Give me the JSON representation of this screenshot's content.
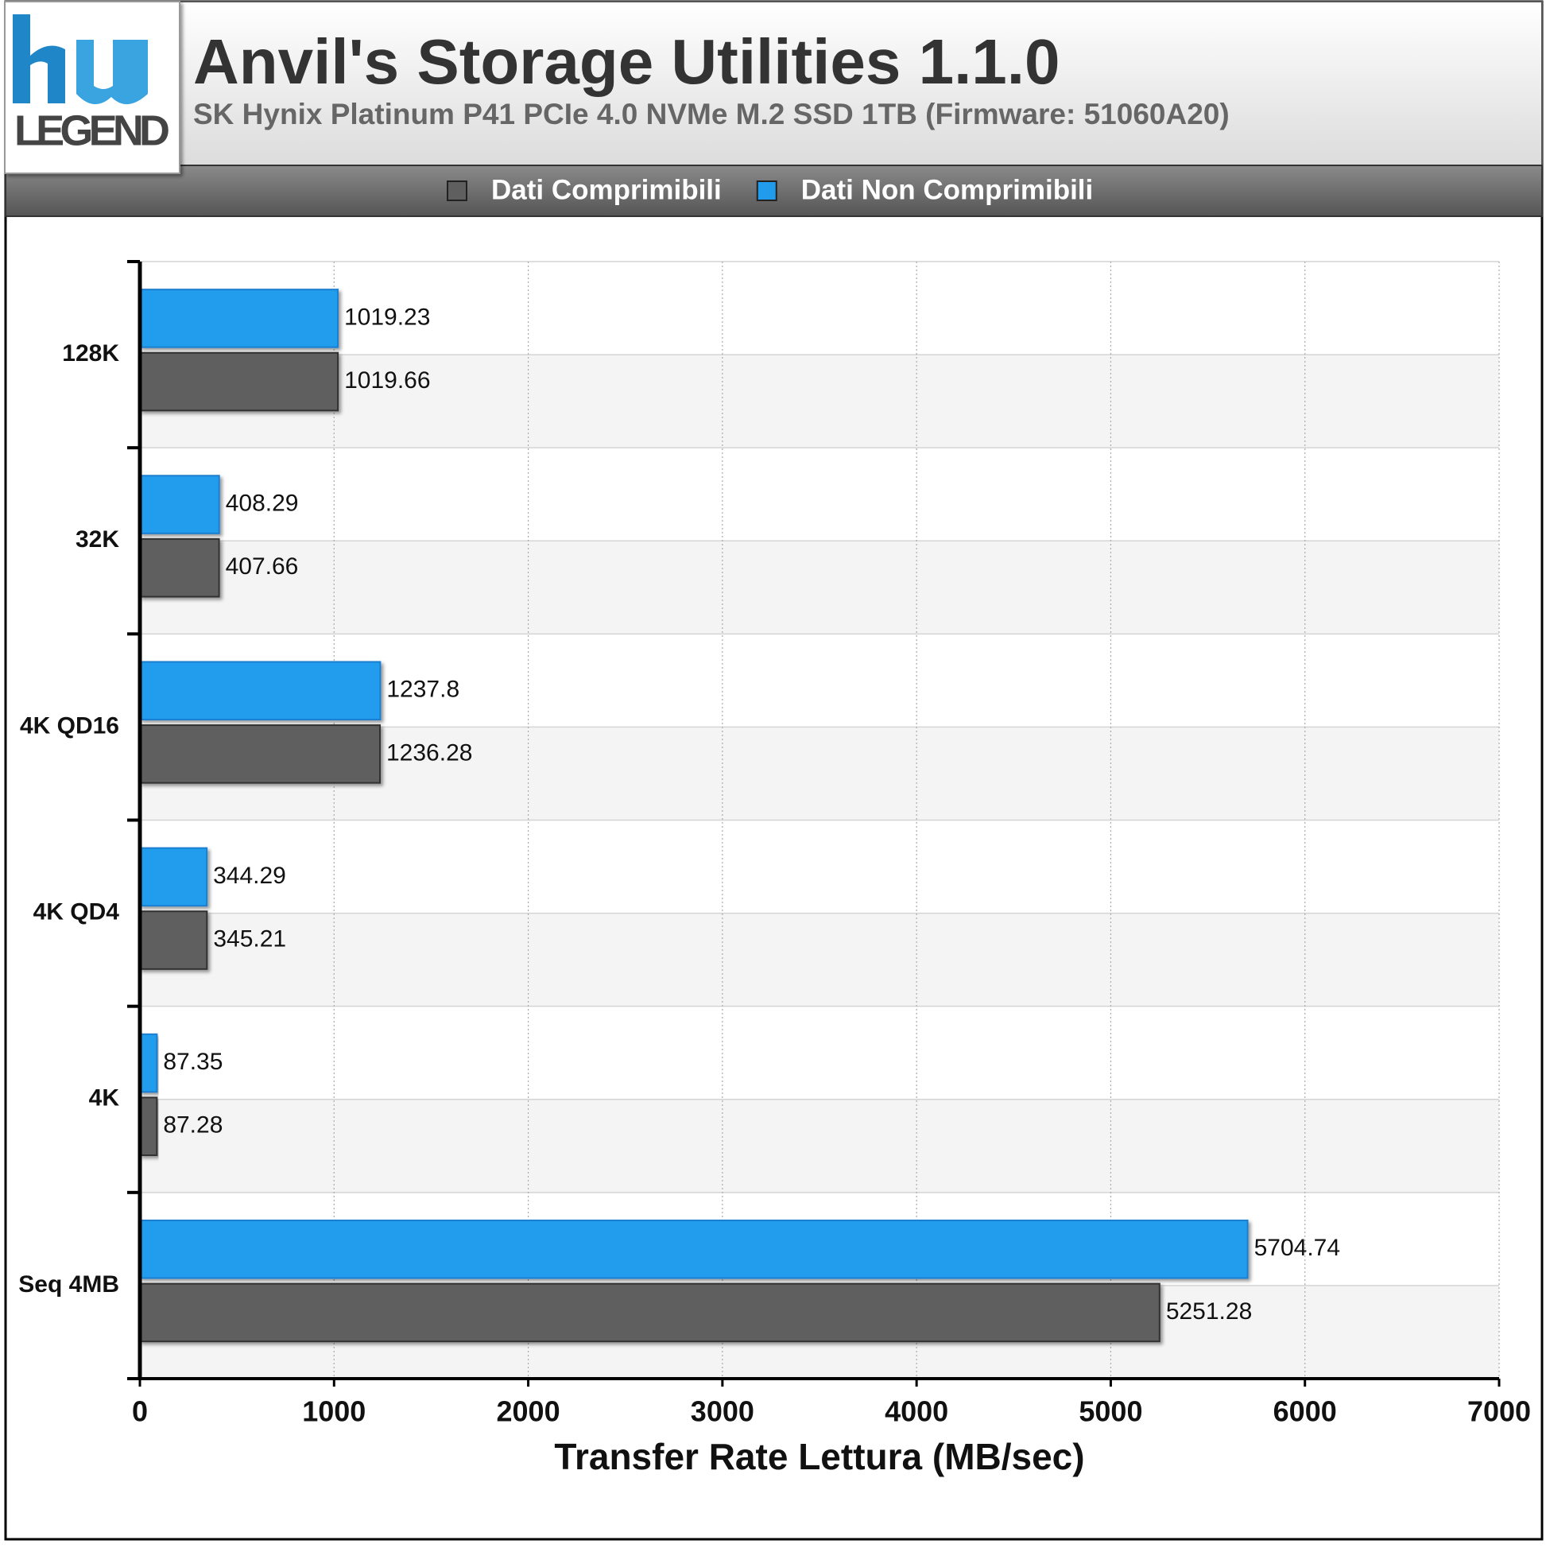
{
  "logo": {
    "text": "LEGEND"
  },
  "chart_data": {
    "type": "hbar",
    "title": "Anvil's Storage Utilities 1.1.0",
    "subtitle": "SK Hynix Platinum P41 PCIe 4.0 NVMe M.2 SSD 1TB (Firmware: 51060A20)",
    "x_label": "Transfer Rate Lettura (MB/sec)",
    "categories": [
      "128K",
      "32K",
      "4K QD16",
      "4K QD4",
      "4K",
      "Seq 4MB"
    ],
    "series": [
      {
        "name": "Dati Comprimibili",
        "color": "#5f5f5f",
        "values": [
          1019.66,
          407.66,
          1236.28,
          345.21,
          87.28,
          5251.28
        ]
      },
      {
        "name": "Dati Non Comprimibili",
        "color": "#219ced",
        "values": [
          1019.23,
          408.29,
          1237.8,
          344.29,
          87.35,
          5704.74
        ]
      }
    ],
    "xlim": [
      0,
      7000
    ],
    "xticks": [
      0,
      1000,
      2000,
      3000,
      4000,
      5000,
      6000,
      7000
    ],
    "grid": true
  }
}
